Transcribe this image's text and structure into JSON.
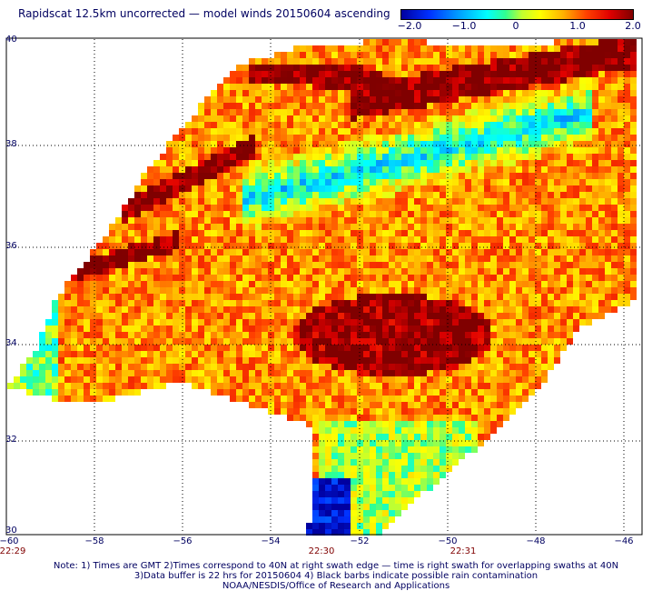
{
  "title": "Rapidscat 12.5km uncorrected — model winds 20150604 ascending",
  "colorbar": {
    "labels": [
      "−2.0",
      "−1.0",
      "0",
      "1.0",
      "2.0"
    ],
    "range": [
      -2.0,
      2.0
    ]
  },
  "map": {
    "lat_labels": [
      "40",
      "38",
      "36",
      "34",
      "32",
      "30"
    ],
    "lon_labels": [
      "−60",
      "−58",
      "−56",
      "−54",
      "−52",
      "−50",
      "−48",
      "−46"
    ],
    "time_labels": [
      "22:29",
      "22:30",
      "22:31"
    ],
    "lat_range": [
      30,
      40
    ],
    "lon_range": [
      -60,
      -45
    ]
  },
  "notes": {
    "line1": "Note: 1) Times are GMT 2)Times correspond to 40N at right swath edge — time is right swath for overlapping swaths at 40N",
    "line2": "3)Data buffer is 22 hrs for 20150604 4) Black barbs indicate possible rain contamination",
    "line3": "NOAA/NESDIS/Office of Research and Applications"
  }
}
